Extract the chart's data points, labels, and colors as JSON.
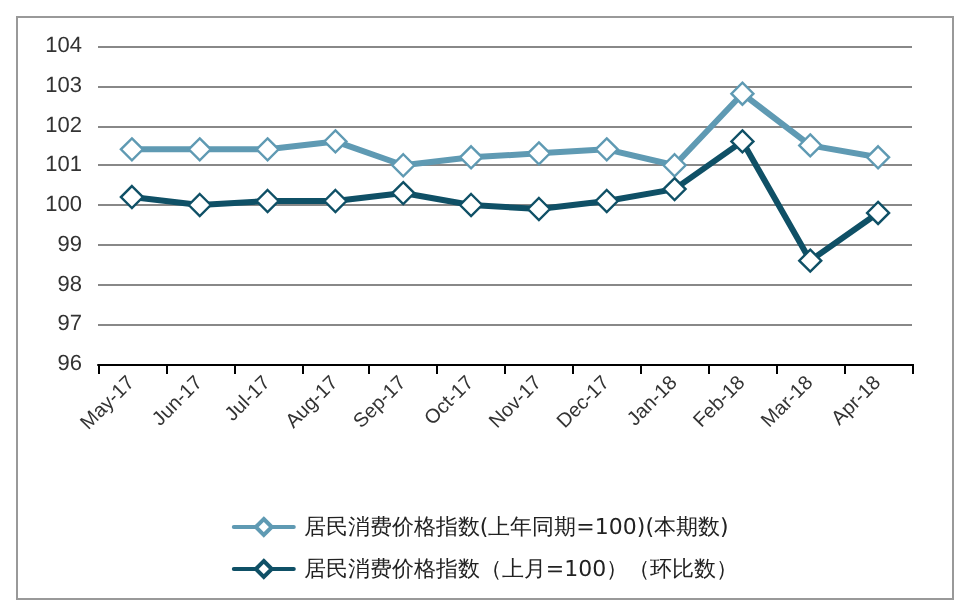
{
  "chart_data": {
    "type": "line",
    "categories": [
      "May-17",
      "Jun-17",
      "Jul-17",
      "Aug-17",
      "Sep-17",
      "Oct-17",
      "Nov-17",
      "Dec-17",
      "Jan-18",
      "Feb-18",
      "Mar-18",
      "Apr-18"
    ],
    "series": [
      {
        "name": "居民消费价格指数(上年同期=100)(本期数)",
        "color": "#5f9ab3",
        "values": [
          101.4,
          101.4,
          101.4,
          101.6,
          101.0,
          101.2,
          101.3,
          101.4,
          101.0,
          102.8,
          101.5,
          101.2
        ]
      },
      {
        "name": "居民消费价格指数（上月=100）（环比数）",
        "color": "#0f5066",
        "values": [
          100.2,
          100.0,
          100.1,
          100.1,
          100.3,
          100.0,
          99.9,
          100.1,
          100.4,
          101.6,
          98.6,
          99.8
        ]
      }
    ],
    "ylim": [
      96,
      104
    ],
    "yticks": [
      96,
      97,
      98,
      99,
      100,
      101,
      102,
      103,
      104
    ],
    "grid": "y",
    "legend": "bottom",
    "marker": "diamond",
    "line_style": "solid"
  }
}
